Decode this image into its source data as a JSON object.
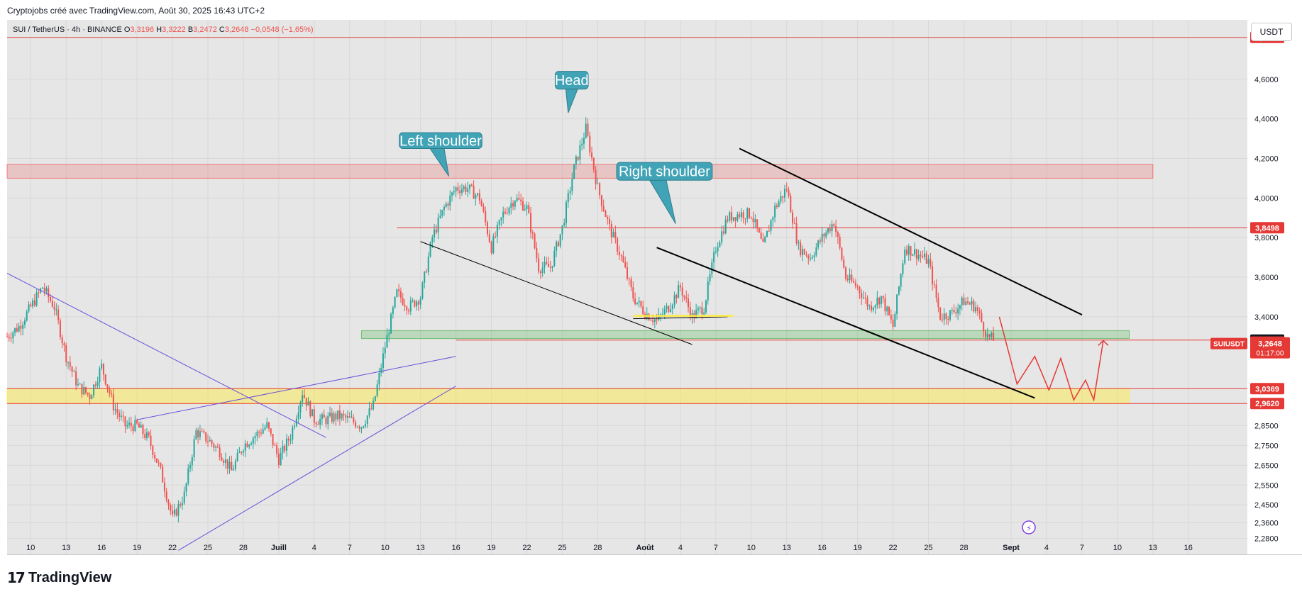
{
  "header": {
    "caption": "Cryptojobs créé avec TradingView.com, Août 30, 2025 16:43 UTC+2"
  },
  "currency_button": "USDT",
  "brand": {
    "name": "TradingView"
  },
  "colors": {
    "up": "#26a69a",
    "down": "#ef5350",
    "line_red": "#e53935",
    "callout": "#41a3b6",
    "zone_red": "rgba(239,83,80,0.22)",
    "zone_green": "rgba(76,175,80,0.28)",
    "zone_yellow": "rgba(255,235,59,0.45)",
    "purple": "#6a4fd8",
    "black": "#000000"
  },
  "chart_data": {
    "type": "candlestick",
    "symbol_bar": {
      "symbol": "SUI / TetherUS · 4h · BINANCE",
      "o_label": "O",
      "o_val": "3,3196",
      "h_label": "H",
      "h_val": "3,3222",
      "b_label": "B",
      "b_val": "3,2472",
      "c_label": "C",
      "c_val": "3,2648",
      "change": "−0,0548 (−1,65%)"
    },
    "y_range": [
      2.2,
      4.9
    ],
    "y_ticks": [
      {
        "label": "4,6000",
        "value": 4.6
      },
      {
        "label": "4,4000",
        "value": 4.4
      },
      {
        "label": "4,2000",
        "value": 4.2
      },
      {
        "label": "4,0000",
        "value": 4.0
      },
      {
        "label": "3,8000",
        "value": 3.8
      },
      {
        "label": "3,6000",
        "value": 3.6
      },
      {
        "label": "3,4000",
        "value": 3.4
      },
      {
        "label": "2,8500",
        "value": 2.85
      },
      {
        "label": "2,7500",
        "value": 2.75
      },
      {
        "label": "2,6500",
        "value": 2.65
      },
      {
        "label": "2,5500",
        "value": 2.55
      },
      {
        "label": "2,4500",
        "value": 2.45
      },
      {
        "label": "2,3600",
        "value": 2.36
      },
      {
        "label": "2,2800",
        "value": 2.28
      }
    ],
    "x_ticks": [
      {
        "label": "10",
        "day": 10
      },
      {
        "label": "13",
        "day": 13
      },
      {
        "label": "16",
        "day": 16
      },
      {
        "label": "19",
        "day": 19
      },
      {
        "label": "22",
        "day": 22
      },
      {
        "label": "25",
        "day": 25
      },
      {
        "label": "28",
        "day": 28
      },
      {
        "label": "Juill",
        "day": 31,
        "bold": true
      },
      {
        "label": "4",
        "day": 34
      },
      {
        "label": "7",
        "day": 37
      },
      {
        "label": "10",
        "day": 40
      },
      {
        "label": "13",
        "day": 43
      },
      {
        "label": "16",
        "day": 46
      },
      {
        "label": "19",
        "day": 49
      },
      {
        "label": "22",
        "day": 52
      },
      {
        "label": "25",
        "day": 55
      },
      {
        "label": "28",
        "day": 58
      },
      {
        "label": "Août",
        "day": 62,
        "bold": true
      },
      {
        "label": "4",
        "day": 65
      },
      {
        "label": "7",
        "day": 68
      },
      {
        "label": "10",
        "day": 71
      },
      {
        "label": "13",
        "day": 74
      },
      {
        "label": "16",
        "day": 77
      },
      {
        "label": "19",
        "day": 80
      },
      {
        "label": "22",
        "day": 83
      },
      {
        "label": "25",
        "day": 86
      },
      {
        "label": "28",
        "day": 89
      },
      {
        "label": "Sept",
        "day": 93,
        "bold": true
      },
      {
        "label": "4",
        "day": 96
      },
      {
        "label": "7",
        "day": 99
      },
      {
        "label": "10",
        "day": 102
      },
      {
        "label": "13",
        "day": 105
      },
      {
        "label": "16",
        "day": 108
      }
    ],
    "x_range": [
      8,
      113
    ],
    "price_path": [
      [
        8,
        3.3
      ],
      [
        9,
        3.35
      ],
      [
        10,
        3.45
      ],
      [
        11,
        3.55
      ],
      [
        12,
        3.45
      ],
      [
        13,
        3.2
      ],
      [
        14,
        3.05
      ],
      [
        15,
        3.0
      ],
      [
        16,
        3.15
      ],
      [
        17,
        2.95
      ],
      [
        18,
        2.85
      ],
      [
        19,
        2.85
      ],
      [
        20,
        2.78
      ],
      [
        21,
        2.62
      ],
      [
        22,
        2.38
      ],
      [
        23,
        2.5
      ],
      [
        24,
        2.82
      ],
      [
        25,
        2.78
      ],
      [
        26,
        2.72
      ],
      [
        27,
        2.62
      ],
      [
        28,
        2.75
      ],
      [
        29,
        2.8
      ],
      [
        30,
        2.85
      ],
      [
        31,
        2.68
      ],
      [
        32,
        2.8
      ],
      [
        33,
        3.02
      ],
      [
        34,
        2.88
      ],
      [
        35,
        2.88
      ],
      [
        36,
        2.9
      ],
      [
        37,
        2.88
      ],
      [
        38,
        2.85
      ],
      [
        39,
        2.95
      ],
      [
        40,
        3.25
      ],
      [
        41,
        3.52
      ],
      [
        42,
        3.45
      ],
      [
        43,
        3.5
      ],
      [
        44,
        3.8
      ],
      [
        45,
        3.95
      ],
      [
        46,
        4.05
      ],
      [
        47,
        4.05
      ],
      [
        48,
        4.0
      ],
      [
        49,
        3.75
      ],
      [
        50,
        3.92
      ],
      [
        51,
        4.0
      ],
      [
        52,
        3.95
      ],
      [
        53,
        3.65
      ],
      [
        54,
        3.65
      ],
      [
        55,
        3.85
      ],
      [
        56,
        4.15
      ],
      [
        57,
        4.35
      ],
      [
        58,
        4.05
      ],
      [
        59,
        3.85
      ],
      [
        60,
        3.7
      ],
      [
        61,
        3.5
      ],
      [
        62,
        3.42
      ],
      [
        63,
        3.38
      ],
      [
        64,
        3.45
      ],
      [
        65,
        3.55
      ],
      [
        66,
        3.4
      ],
      [
        67,
        3.45
      ],
      [
        68,
        3.75
      ],
      [
        69,
        3.9
      ],
      [
        70,
        3.92
      ],
      [
        71,
        3.92
      ],
      [
        72,
        3.75
      ],
      [
        73,
        3.95
      ],
      [
        74,
        4.05
      ],
      [
        75,
        3.75
      ],
      [
        76,
        3.7
      ],
      [
        77,
        3.8
      ],
      [
        78,
        3.88
      ],
      [
        79,
        3.6
      ],
      [
        80,
        3.55
      ],
      [
        81,
        3.45
      ],
      [
        82,
        3.5
      ],
      [
        83,
        3.35
      ],
      [
        84,
        3.75
      ],
      [
        85,
        3.72
      ],
      [
        86,
        3.68
      ],
      [
        87,
        3.4
      ],
      [
        88,
        3.42
      ],
      [
        89,
        3.48
      ],
      [
        90,
        3.45
      ],
      [
        91,
        3.3
      ],
      [
        91.6,
        3.28
      ]
    ],
    "levels": [
      {
        "value": 4.8115,
        "label": "4,8115",
        "color": "#e53935",
        "x0": 8
      },
      {
        "value": 3.8498,
        "label": "3,8498",
        "color": "#e53935",
        "x0": 41
      },
      {
        "value": 3.2822,
        "label": "3,2822",
        "color": "#e53935",
        "x0": 46,
        "tag_color": "#131722"
      },
      {
        "value": 3.2722,
        "label": "3,2722",
        "color": "#e53935",
        "tag_only": true
      },
      {
        "value": 3.0369,
        "label": "3,0369",
        "color": "#e53935",
        "x0": 8
      },
      {
        "value": 2.962,
        "label": "2,9620",
        "color": "#e53935",
        "x0": 8
      }
    ],
    "current_price": {
      "symbol": "SUIUSDT",
      "value": 3.2648,
      "label": "3,2648",
      "countdown": "01:17:00"
    },
    "zones": [
      {
        "x0": 8,
        "x1": 105,
        "y0": 4.1,
        "y1": 4.17,
        "fill": "rgba(239,83,80,0.22)"
      },
      {
        "x0": 38,
        "x1": 103,
        "y0": 3.29,
        "y1": 3.33,
        "fill": "rgba(76,175,80,0.28)"
      },
      {
        "x0": 8,
        "x1": 103,
        "y0": 2.962,
        "y1": 3.037,
        "fill": "rgba(255,235,59,0.45)"
      }
    ],
    "trendlines": [
      {
        "p": [
          [
            8,
            3.62
          ],
          [
            35,
            2.79
          ]
        ],
        "color": "#6a4fd8",
        "w": 1
      },
      {
        "p": [
          [
            19,
            2.88
          ],
          [
            46,
            3.2
          ]
        ],
        "color": "#6a4fd8",
        "w": 1
      },
      {
        "p": [
          [
            22.5,
            2.22
          ],
          [
            46,
            3.05
          ]
        ],
        "color": "#6a4fd8",
        "w": 1
      },
      {
        "p": [
          [
            43,
            3.78
          ],
          [
            66,
            3.26
          ]
        ],
        "color": "#000000",
        "w": 1
      },
      {
        "p": [
          [
            70,
            4.25
          ],
          [
            99,
            3.41
          ]
        ],
        "color": "#000000",
        "w": 2
      },
      {
        "p": [
          [
            63,
            3.75
          ],
          [
            95,
            2.99
          ]
        ],
        "color": "#000000",
        "w": 2
      },
      {
        "p": [
          [
            61,
            3.39
          ],
          [
            69,
            3.4
          ]
        ],
        "color": "#000000",
        "w": 1
      }
    ],
    "projection": [
      [
        92,
        3.4
      ],
      [
        93.5,
        3.06
      ],
      [
        95,
        3.2
      ],
      [
        96.2,
        3.03
      ],
      [
        97.2,
        3.19
      ],
      [
        98.3,
        2.98
      ],
      [
        99.3,
        3.08
      ],
      [
        100,
        2.98
      ],
      [
        100.8,
        3.28
      ]
    ],
    "callouts": [
      {
        "text": "Left shoulder",
        "x0": 41.2,
        "x1": 48.2,
        "y0": 4.33,
        "y1": 4.25,
        "tip": [
          45.4,
          4.11
        ],
        "base": [
          43.8,
          45.0
        ]
      },
      {
        "text": "Head",
        "x0": 54.4,
        "x1": 57.2,
        "y0": 4.64,
        "y1": 4.55,
        "tip": [
          55.5,
          4.43
        ],
        "base": [
          55.3,
          56.3
        ]
      },
      {
        "text": "Right shoulder",
        "x0": 59.6,
        "x1": 67.7,
        "y0": 4.18,
        "y1": 4.09,
        "tip": [
          64.6,
          3.87
        ],
        "base": [
          62.4,
          63.8
        ]
      }
    ]
  }
}
